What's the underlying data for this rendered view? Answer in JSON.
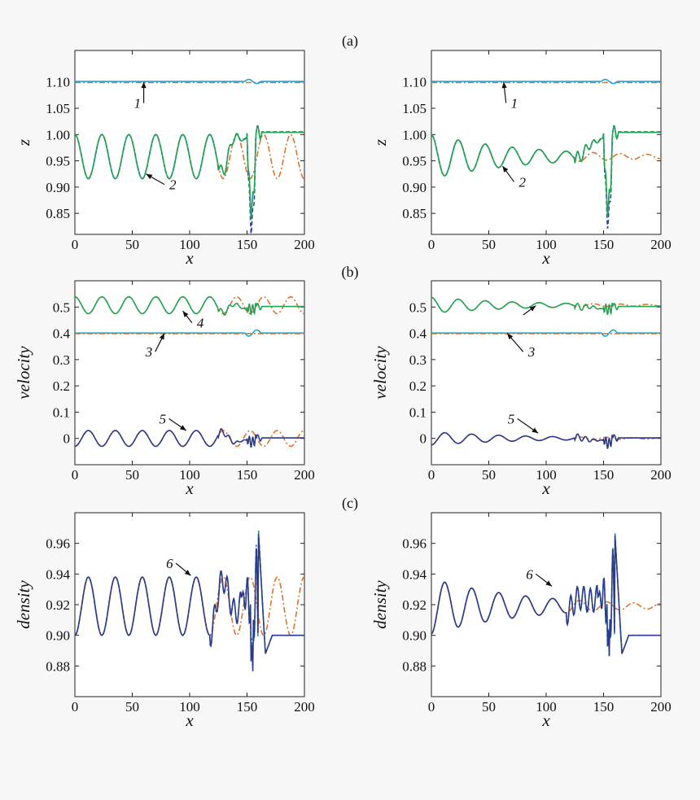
{
  "panel_labels": [
    "(a)",
    "(b)",
    "(c)"
  ],
  "colors": {
    "green": "#1fa652",
    "cyan": "#1ea7d8",
    "navy": "#2a3a8c",
    "orange": "#e0722a",
    "blue_dash": "#2a3fb0",
    "teal_dash": "#2e9a8e"
  },
  "chart_data": [
    {
      "id": "a-left",
      "type": "line",
      "row": "a",
      "col": "left",
      "xlabel": "x",
      "ylabel": "z",
      "xlim": [
        0,
        200
      ],
      "ylim": [
        0.81,
        1.16
      ],
      "xticks": [
        "0",
        "50",
        "100",
        "150",
        "200"
      ],
      "yticks": [
        0.85,
        0.9,
        0.95,
        1.0,
        1.05,
        1.1
      ],
      "ytick_labels": [
        "0.85",
        "0.90",
        "0.95",
        "1.00",
        "1.05",
        "1.10"
      ],
      "series": [
        {
          "name": "curve 1 (dash-dot)",
          "color": "orange",
          "style": "dashdot",
          "kind": "flat",
          "base": 1.099,
          "amp": 0.0
        },
        {
          "name": "curve 1",
          "color": "cyan",
          "style": "solid",
          "kind": "flat",
          "base": 1.101,
          "amp": 0.0,
          "blip": 0.004
        },
        {
          "name": "curve 2 (dash-dot)",
          "color": "orange",
          "style": "dashdot",
          "kind": "osc_cont",
          "base": 0.958,
          "amp": 0.042,
          "period": 23.5,
          "decay": 0.0
        },
        {
          "name": "curve 2 (dashed)",
          "color": "blue_dash",
          "style": "dashed",
          "kind": "shock",
          "base": 0.958,
          "amp": 0.042,
          "period": 23.5,
          "decay": 0.0,
          "dip": 0.828,
          "after": 1.005
        },
        {
          "name": "curve 2 (dashed teal)",
          "color": "teal_dash",
          "style": "dashed",
          "kind": "shock",
          "base": 0.958,
          "amp": 0.042,
          "period": 23.5,
          "decay": 0.0,
          "dip": 0.855,
          "after": 1.004
        },
        {
          "name": "curve 2",
          "color": "green",
          "style": "solid",
          "kind": "shock",
          "base": 0.958,
          "amp": 0.042,
          "period": 23.5,
          "decay": 0.0,
          "dip": 0.86,
          "after": 1.004
        }
      ],
      "annotations": [
        {
          "text": "1",
          "x": 60,
          "y": 1.06,
          "tx": 60,
          "ty": 1.1
        },
        {
          "text": "2",
          "x": 78,
          "y": 0.905,
          "tx": 62,
          "ty": 0.925
        }
      ]
    },
    {
      "id": "a-right",
      "type": "line",
      "row": "a",
      "col": "right",
      "xlabel": "x",
      "ylabel": "z",
      "xlim": [
        0,
        200
      ],
      "ylim": [
        0.81,
        1.16
      ],
      "xticks": [
        "0",
        "50",
        "100",
        "150",
        "200"
      ],
      "yticks": [
        0.85,
        0.9,
        0.95,
        1.0,
        1.05,
        1.1
      ],
      "ytick_labels": [
        "0.85",
        "0.90",
        "0.95",
        "1.00",
        "1.05",
        "1.10"
      ],
      "series": [
        {
          "name": "curve 1 (dash-dot)",
          "color": "orange",
          "style": "dashdot",
          "kind": "flat",
          "base": 1.099,
          "amp": 0.0
        },
        {
          "name": "curve 1",
          "color": "cyan",
          "style": "solid",
          "kind": "flat",
          "base": 1.101,
          "amp": 0.0,
          "blip": 0.004
        },
        {
          "name": "curve 2 (dash-dot)",
          "color": "orange",
          "style": "dashdot",
          "kind": "osc_cont",
          "base": 0.958,
          "amp": 0.042,
          "period": 23.5,
          "decay": 0.012
        },
        {
          "name": "curve 2 (dashed)",
          "color": "blue_dash",
          "style": "dashed",
          "kind": "shock",
          "base": 0.958,
          "amp": 0.042,
          "period": 23.5,
          "decay": 0.012,
          "dip": 0.838,
          "after": 1.005
        },
        {
          "name": "curve 2 (dashed teal)",
          "color": "teal_dash",
          "style": "dashed",
          "kind": "shock",
          "base": 0.958,
          "amp": 0.042,
          "period": 23.5,
          "decay": 0.012,
          "dip": 0.86,
          "after": 1.004
        },
        {
          "name": "curve 2",
          "color": "green",
          "style": "solid",
          "kind": "shock",
          "base": 0.958,
          "amp": 0.042,
          "period": 23.5,
          "decay": 0.012,
          "dip": 0.865,
          "after": 1.004
        }
      ],
      "annotations": [
        {
          "text": "1",
          "x": 65,
          "y": 1.06,
          "tx": 63,
          "ty": 1.1
        },
        {
          "text": "2",
          "x": 72,
          "y": 0.91,
          "tx": 62,
          "ty": 0.94
        }
      ]
    },
    {
      "id": "b-left",
      "type": "line",
      "row": "b",
      "col": "left",
      "xlabel": "x",
      "ylabel": "velocity",
      "xlim": [
        0,
        200
      ],
      "ylim": [
        -0.1,
        0.6
      ],
      "xticks": [
        "0",
        "50",
        "100",
        "150",
        "200"
      ],
      "yticks": [
        0,
        0.1,
        0.2,
        0.3,
        0.4,
        0.5
      ],
      "ytick_labels": [
        "0",
        "0.1",
        "0.2",
        "0.3",
        "0.4",
        "0.5"
      ],
      "series": [
        {
          "name": "curve 3 (dash-dot)",
          "color": "orange",
          "style": "dashdot",
          "kind": "flat",
          "base": 0.399,
          "amp": 0.0
        },
        {
          "name": "curve 3",
          "color": "cyan",
          "style": "solid",
          "kind": "flat",
          "base": 0.401,
          "amp": 0.0,
          "blip": -0.012
        },
        {
          "name": "curve 4 (dash-dot)",
          "color": "orange",
          "style": "dashdot",
          "kind": "osc_cont",
          "base": 0.507,
          "amp": 0.032,
          "period": 23.5,
          "decay": 0.0
        },
        {
          "name": "curve 4",
          "color": "green",
          "style": "solid",
          "kind": "shock",
          "base": 0.507,
          "amp": 0.032,
          "period": 23.5,
          "decay": 0.0,
          "dip": 0.49,
          "after": 0.502
        },
        {
          "name": "curve 5 (dash-dot)",
          "color": "orange",
          "style": "dashdot",
          "kind": "osc_cont",
          "base": 0.0,
          "amp": 0.03,
          "period": 23.5,
          "decay": 0.0,
          "phase": 1
        },
        {
          "name": "curve 5",
          "color": "navy",
          "style": "solid",
          "kind": "shock",
          "base": 0.0,
          "amp": 0.03,
          "period": 23.5,
          "decay": 0.0,
          "phase": 1,
          "dip": -0.015,
          "after": 0.002
        }
      ],
      "annotations": [
        {
          "text": "3",
          "x": 70,
          "y": 0.33,
          "tx": 78,
          "ty": 0.4
        },
        {
          "text": "4",
          "x": 102,
          "y": 0.44,
          "tx": 94,
          "ty": 0.485
        },
        {
          "text": "5",
          "x": 82,
          "y": 0.075,
          "tx": 97,
          "ty": 0.03
        }
      ]
    },
    {
      "id": "b-right",
      "type": "line",
      "row": "b",
      "col": "right",
      "xlabel": "x",
      "ylabel": "velocity",
      "xlim": [
        0,
        200
      ],
      "ylim": [
        -0.1,
        0.6
      ],
      "xticks": [
        "0",
        "50",
        "100",
        "150",
        "200"
      ],
      "yticks": [
        0,
        0.1,
        0.2,
        0.3,
        0.4,
        0.5
      ],
      "ytick_labels": [
        "0",
        "0.1",
        "0.2",
        "0.3",
        "0.4",
        "0.5"
      ],
      "series": [
        {
          "name": "curve 3 (dash-dot)",
          "color": "orange",
          "style": "dashdot",
          "kind": "flat",
          "base": 0.399,
          "amp": 0.0
        },
        {
          "name": "curve 3",
          "color": "cyan",
          "style": "solid",
          "kind": "flat",
          "base": 0.401,
          "amp": 0.0,
          "blip": -0.012
        },
        {
          "name": "curve 4 (dash-dot)",
          "color": "orange",
          "style": "dashdot",
          "kind": "osc_cont",
          "base": 0.507,
          "amp": 0.03,
          "period": 23.5,
          "decay": 0.012
        },
        {
          "name": "curve 4",
          "color": "green",
          "style": "solid",
          "kind": "shock",
          "base": 0.507,
          "amp": 0.03,
          "period": 23.5,
          "decay": 0.012,
          "dip": 0.49,
          "after": 0.502
        },
        {
          "name": "curve 5 (dash-dot)",
          "color": "orange",
          "style": "dashdot",
          "kind": "osc_cont",
          "base": 0.0,
          "amp": 0.025,
          "period": 23.5,
          "decay": 0.012,
          "phase": 1
        },
        {
          "name": "curve 5",
          "color": "navy",
          "style": "solid",
          "kind": "shock",
          "base": 0.0,
          "amp": 0.025,
          "period": 23.5,
          "decay": 0.012,
          "phase": 1,
          "dip": -0.02,
          "after": 0.002
        }
      ],
      "annotations": [
        {
          "text": "3",
          "x": 80,
          "y": 0.33,
          "tx": 66,
          "ty": 0.4
        },
        {
          "text": "",
          "x": 80,
          "y": 0.47,
          "tx": 91,
          "ty": 0.505
        },
        {
          "text": "5",
          "x": 75,
          "y": 0.075,
          "tx": 93,
          "ty": 0.02
        }
      ]
    },
    {
      "id": "c-left",
      "type": "line",
      "row": "c",
      "col": "left",
      "xlabel": "x",
      "ylabel": "density",
      "xlim": [
        0,
        200
      ],
      "ylim": [
        0.86,
        0.98
      ],
      "xticks": [
        "0",
        "50",
        "100",
        "150",
        "200"
      ],
      "yticks": [
        0.88,
        0.9,
        0.92,
        0.94,
        0.96
      ],
      "ytick_labels": [
        "0.88",
        "0.90",
        "0.92",
        "0.94",
        "0.96"
      ],
      "series": [
        {
          "name": "curve 6 (dash-dot)",
          "color": "orange",
          "style": "dashdot",
          "kind": "osc_cont",
          "base": 0.919,
          "amp": 0.019,
          "period": 23.5,
          "decay": 0.0,
          "phase": 1
        },
        {
          "name": "curve 6 (dashed teal)",
          "color": "teal_dash",
          "style": "dashed",
          "kind": "dshock",
          "base": 0.919,
          "amp": 0.019,
          "period": 23.5,
          "decay": 0.0,
          "phase": 1,
          "dip": 0.875,
          "peak": 0.969,
          "after": 0.9
        },
        {
          "name": "curve 6",
          "color": "navy",
          "style": "solid",
          "kind": "dshock",
          "base": 0.919,
          "amp": 0.019,
          "period": 23.5,
          "decay": 0.0,
          "phase": 1,
          "dip": 0.872,
          "peak": 0.966,
          "after": 0.9
        }
      ],
      "annotations": [
        {
          "text": "6",
          "x": 88,
          "y": 0.947,
          "tx": 101,
          "ty": 0.939
        }
      ]
    },
    {
      "id": "c-right",
      "type": "line",
      "row": "c",
      "col": "right",
      "xlabel": "x",
      "ylabel": "density",
      "xlim": [
        0,
        200
      ],
      "ylim": [
        0.86,
        0.98
      ],
      "xticks": [
        "0",
        "50",
        "100",
        "150",
        "200"
      ],
      "yticks": [
        0.88,
        0.9,
        0.92,
        0.94,
        0.96
      ],
      "ytick_labels": [
        "0.88",
        "0.90",
        "0.92",
        "0.94",
        "0.96"
      ],
      "series": [
        {
          "name": "curve 6 (dash-dot)",
          "color": "orange",
          "style": "dashdot",
          "kind": "osc_cont",
          "base": 0.919,
          "amp": 0.018,
          "period": 23.5,
          "decay": 0.012,
          "phase": 1
        },
        {
          "name": "curve 6 (dashed teal)",
          "color": "teal_dash",
          "style": "dashed",
          "kind": "dshock",
          "base": 0.919,
          "amp": 0.018,
          "period": 23.5,
          "decay": 0.012,
          "phase": 1,
          "dip": 0.882,
          "peak": 0.967,
          "after": 0.9
        },
        {
          "name": "curve 6",
          "color": "navy",
          "style": "solid",
          "kind": "dshock",
          "base": 0.919,
          "amp": 0.018,
          "period": 23.5,
          "decay": 0.012,
          "phase": 1,
          "dip": 0.882,
          "peak": 0.965,
          "after": 0.9
        }
      ],
      "annotations": [
        {
          "text": "6",
          "x": 91,
          "y": 0.94,
          "tx": 105,
          "ty": 0.932
        }
      ]
    }
  ]
}
